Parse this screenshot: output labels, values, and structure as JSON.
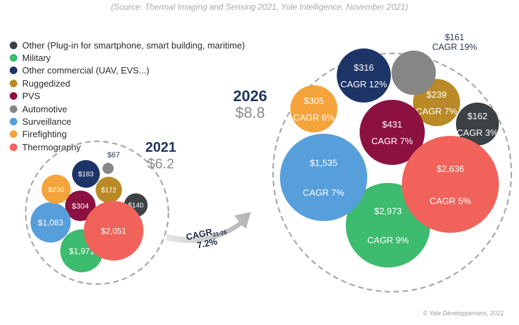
{
  "source_note": "(Source: Thermal Imaging and Sensing 2021, Yole Intelligence, November 2021)",
  "credit": "© Yole Développement, 2022",
  "chart_data": {
    "type": "bubble",
    "categories": [
      {
        "name": "Other (Plug-in for smartphone, smart building, maritime)",
        "color": "#3c4145"
      },
      {
        "name": "Military",
        "color": "#3dbb6e"
      },
      {
        "name": "Other commercial (UAV, EVS...)",
        "color": "#1d3466"
      },
      {
        "name": "Ruggedized",
        "color": "#b98a25"
      },
      {
        "name": "PVS",
        "color": "#8c1141"
      },
      {
        "name": "Automotive",
        "color": "#868686"
      },
      {
        "name": "Surveillance",
        "color": "#569fdb"
      },
      {
        "name": "Firefighting",
        "color": "#f5a33b"
      },
      {
        "name": "Thermography",
        "color": "#f0625a"
      }
    ],
    "growth_arrow": {
      "label": "CAGR",
      "subscript": "21-26",
      "value": "7.2%"
    },
    "years": [
      {
        "year": "2021",
        "total": "$6.2",
        "bubbles": [
          {
            "category": "Other (Plug-in for smartphone, smart building, maritime)",
            "label": "$140",
            "value": 140
          },
          {
            "category": "Military",
            "label": "$1,971",
            "value": 1971
          },
          {
            "category": "Other commercial (UAV, EVS...)",
            "label": "$183",
            "value": 183
          },
          {
            "category": "Ruggedized",
            "label": "$172",
            "value": 172
          },
          {
            "category": "PVS",
            "label": "$304",
            "value": 304
          },
          {
            "category": "Automotive",
            "label": "$67",
            "value": 67
          },
          {
            "category": "Surveillance",
            "label": "$1,083",
            "value": 1083
          },
          {
            "category": "Firefighting",
            "label": "$230",
            "value": 230
          },
          {
            "category": "Thermography",
            "label": "$2,051",
            "value": 2051
          }
        ]
      },
      {
        "year": "2026",
        "total": "$8.8",
        "bubbles": [
          {
            "category": "Other (Plug-in for smartphone, smart building, maritime)",
            "label": "$162",
            "cagr": "CAGR 3%",
            "value": 162
          },
          {
            "category": "Military",
            "label": "$2,973",
            "cagr": "CAGR 9%",
            "value": 2973
          },
          {
            "category": "Other commercial (UAV, EVS...)",
            "label": "$316",
            "cagr": "CAGR 12%",
            "value": 316
          },
          {
            "category": "Ruggedized",
            "label": "$239",
            "cagr": "CAGR 7%",
            "value": 239
          },
          {
            "category": "PVS",
            "label": "$431",
            "cagr": "CAGR 7%",
            "value": 431
          },
          {
            "category": "Automotive",
            "label": "$161",
            "cagr": "CAGR 19%",
            "value": 161
          },
          {
            "category": "Surveillance",
            "label": "$1,535",
            "cagr": "CAGR 7%",
            "value": 1535
          },
          {
            "category": "Firefighting",
            "label": "$305",
            "cagr": "CAGR 6%",
            "value": 305
          },
          {
            "category": "Thermography",
            "label": "$2,636",
            "cagr": "CAGR 5%",
            "value": 2636
          }
        ]
      }
    ]
  }
}
